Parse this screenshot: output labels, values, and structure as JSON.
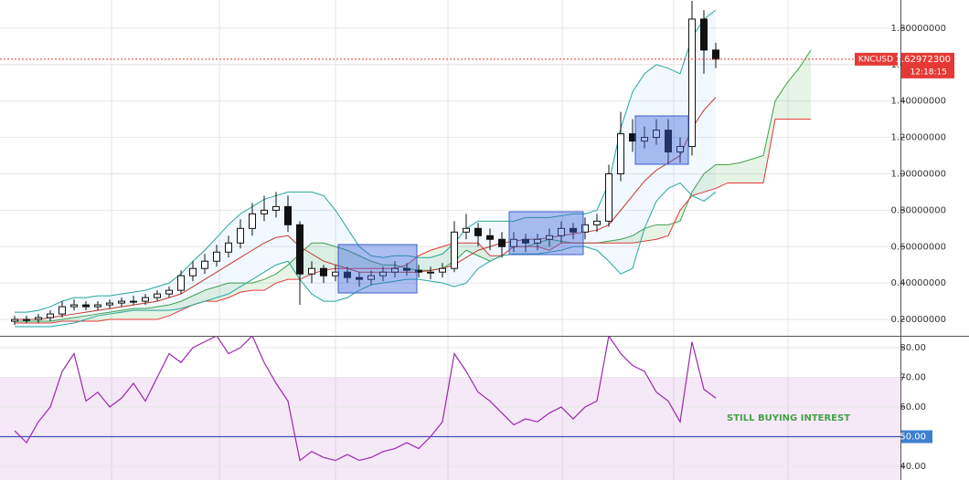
{
  "chart_data": [
    {
      "type": "candlestick",
      "symbol": "KNCUSD",
      "countdown": "12:18:15",
      "last_price": {
        "value": 1.629723,
        "label": "1.62972300"
      },
      "open": [
        0.19,
        0.2,
        0.2,
        0.21,
        0.23,
        0.27,
        0.28,
        0.27,
        0.28,
        0.29,
        0.3,
        0.3,
        0.32,
        0.34,
        0.36,
        0.44,
        0.48,
        0.52,
        0.57,
        0.62,
        0.7,
        0.78,
        0.8,
        0.82,
        0.72,
        0.45,
        0.48,
        0.44,
        0.46,
        0.43,
        0.42,
        0.44,
        0.46,
        0.48,
        0.47,
        0.46,
        0.46,
        0.48,
        0.68,
        0.7,
        0.66,
        0.64,
        0.6,
        0.64,
        0.62,
        0.64,
        0.66,
        0.7,
        0.68,
        0.72,
        0.74,
        1.0,
        1.22,
        1.18,
        1.2,
        1.24,
        1.12,
        1.15,
        1.85,
        1.68
      ],
      "high": [
        0.22,
        0.22,
        0.23,
        0.25,
        0.3,
        0.31,
        0.3,
        0.3,
        0.31,
        0.32,
        0.33,
        0.34,
        0.36,
        0.38,
        0.47,
        0.52,
        0.56,
        0.61,
        0.66,
        0.75,
        0.84,
        0.88,
        0.9,
        0.88,
        0.74,
        0.52,
        0.5,
        0.5,
        0.49,
        0.46,
        0.47,
        0.49,
        0.52,
        0.51,
        0.5,
        0.49,
        0.51,
        0.74,
        0.78,
        0.73,
        0.7,
        0.68,
        0.68,
        0.67,
        0.67,
        0.7,
        0.74,
        0.73,
        0.76,
        0.78,
        1.05,
        1.34,
        1.3,
        1.26,
        1.3,
        1.3,
        1.2,
        1.95,
        1.9,
        1.72
      ],
      "low": [
        0.17,
        0.18,
        0.18,
        0.19,
        0.21,
        0.25,
        0.25,
        0.25,
        0.26,
        0.27,
        0.28,
        0.28,
        0.3,
        0.32,
        0.34,
        0.41,
        0.45,
        0.49,
        0.54,
        0.59,
        0.66,
        0.74,
        0.76,
        0.68,
        0.28,
        0.4,
        0.4,
        0.41,
        0.4,
        0.38,
        0.39,
        0.41,
        0.43,
        0.44,
        0.43,
        0.42,
        0.43,
        0.46,
        0.64,
        0.6,
        0.58,
        0.54,
        0.57,
        0.57,
        0.58,
        0.6,
        0.62,
        0.64,
        0.64,
        0.68,
        0.71,
        0.96,
        1.12,
        1.14,
        1.16,
        1.05,
        1.06,
        1.1,
        1.55,
        1.58
      ],
      "close": [
        0.2,
        0.2,
        0.21,
        0.23,
        0.27,
        0.28,
        0.27,
        0.28,
        0.29,
        0.3,
        0.3,
        0.32,
        0.34,
        0.36,
        0.44,
        0.48,
        0.52,
        0.57,
        0.62,
        0.7,
        0.78,
        0.8,
        0.82,
        0.72,
        0.45,
        0.48,
        0.44,
        0.46,
        0.43,
        0.42,
        0.44,
        0.46,
        0.48,
        0.47,
        0.46,
        0.46,
        0.48,
        0.68,
        0.7,
        0.66,
        0.64,
        0.6,
        0.64,
        0.62,
        0.64,
        0.66,
        0.7,
        0.68,
        0.72,
        0.74,
        1.0,
        1.22,
        1.18,
        1.2,
        1.24,
        1.12,
        1.15,
        1.85,
        1.68,
        1.63
      ],
      "bollinger": {
        "upper": [
          0.24,
          0.24,
          0.25,
          0.27,
          0.3,
          0.32,
          0.32,
          0.33,
          0.33,
          0.34,
          0.35,
          0.36,
          0.38,
          0.4,
          0.45,
          0.52,
          0.58,
          0.65,
          0.72,
          0.78,
          0.82,
          0.86,
          0.88,
          0.9,
          0.9,
          0.9,
          0.88,
          0.8,
          0.7,
          0.6,
          0.55,
          0.54,
          0.55,
          0.55,
          0.54,
          0.54,
          0.56,
          0.62,
          0.7,
          0.74,
          0.74,
          0.74,
          0.74,
          0.76,
          0.76,
          0.76,
          0.77,
          0.78,
          0.78,
          0.8,
          0.95,
          1.25,
          1.45,
          1.55,
          1.6,
          1.58,
          1.55,
          1.75,
          1.85,
          1.9
        ],
        "basis": [
          0.2,
          0.2,
          0.2,
          0.21,
          0.22,
          0.23,
          0.24,
          0.25,
          0.26,
          0.27,
          0.28,
          0.29,
          0.3,
          0.32,
          0.34,
          0.38,
          0.42,
          0.46,
          0.5,
          0.54,
          0.58,
          0.62,
          0.65,
          0.66,
          0.6,
          0.56,
          0.52,
          0.5,
          0.48,
          0.46,
          0.46,
          0.46,
          0.46,
          0.46,
          0.46,
          0.47,
          0.48,
          0.5,
          0.54,
          0.58,
          0.6,
          0.62,
          0.63,
          0.64,
          0.64,
          0.65,
          0.66,
          0.67,
          0.68,
          0.69,
          0.72,
          0.8,
          0.88,
          0.96,
          1.02,
          1.06,
          1.1,
          1.25,
          1.35,
          1.42
        ],
        "lower": [
          0.16,
          0.16,
          0.16,
          0.16,
          0.17,
          0.18,
          0.2,
          0.22,
          0.23,
          0.24,
          0.25,
          0.25,
          0.25,
          0.25,
          0.26,
          0.28,
          0.3,
          0.32,
          0.34,
          0.38,
          0.42,
          0.46,
          0.5,
          0.52,
          0.42,
          0.34,
          0.3,
          0.3,
          0.32,
          0.36,
          0.39,
          0.4,
          0.41,
          0.42,
          0.42,
          0.41,
          0.4,
          0.38,
          0.4,
          0.48,
          0.52,
          0.55,
          0.56,
          0.56,
          0.56,
          0.57,
          0.58,
          0.6,
          0.6,
          0.58,
          0.52,
          0.45,
          0.48,
          0.7,
          0.85,
          0.92,
          0.95,
          0.88,
          0.85,
          0.9
        ]
      },
      "cloud": {
        "span_a": [
          0.19,
          0.19,
          0.19,
          0.19,
          0.2,
          0.21,
          0.22,
          0.23,
          0.24,
          0.25,
          0.26,
          0.26,
          0.27,
          0.28,
          0.3,
          0.33,
          0.36,
          0.38,
          0.4,
          0.4,
          0.4,
          0.42,
          0.45,
          0.5,
          0.56,
          0.62,
          0.62,
          0.6,
          0.58,
          0.55,
          0.52,
          0.5,
          0.5,
          0.48,
          0.47,
          0.47,
          0.48,
          0.52,
          0.58,
          0.55,
          0.52,
          0.55,
          0.6,
          0.6,
          0.62,
          0.64,
          0.63,
          0.62,
          0.62,
          0.62,
          0.63,
          0.64,
          0.66,
          0.7,
          0.72,
          0.72,
          0.74,
          0.9,
          1.0,
          1.05,
          1.05,
          1.06,
          1.08,
          1.1,
          1.4,
          1.5,
          1.58,
          1.68
        ],
        "span_b": [
          0.18,
          0.18,
          0.18,
          0.18,
          0.19,
          0.19,
          0.19,
          0.19,
          0.2,
          0.2,
          0.2,
          0.2,
          0.2,
          0.22,
          0.25,
          0.28,
          0.3,
          0.3,
          0.32,
          0.35,
          0.36,
          0.36,
          0.4,
          0.42,
          0.42,
          0.45,
          0.47,
          0.48,
          0.48,
          0.48,
          0.48,
          0.48,
          0.48,
          0.5,
          0.55,
          0.58,
          0.6,
          0.62,
          0.62,
          0.62,
          0.55,
          0.55,
          0.6,
          0.6,
          0.6,
          0.58,
          0.62,
          0.62,
          0.62,
          0.62,
          0.62,
          0.62,
          0.62,
          0.63,
          0.64,
          0.66,
          0.8,
          0.88,
          0.9,
          0.92,
          0.95,
          0.95,
          0.95,
          0.95,
          1.3,
          1.3,
          1.3,
          1.3
        ]
      },
      "ylim": [
        0.11,
        1.955
      ],
      "grid": true,
      "yticks": [
        {
          "value": 0.2,
          "label": "0.20000000"
        },
        {
          "value": 0.4,
          "label": "0.40000000"
        },
        {
          "value": 0.6,
          "label": "0.60000000"
        },
        {
          "value": 0.8,
          "label": "0.80000000"
        },
        {
          "value": 1.0,
          "label": "1.00000000"
        },
        {
          "value": 1.2,
          "label": "1.20000000"
        },
        {
          "value": 1.4,
          "label": "1.40000000"
        },
        {
          "value": 1.6,
          "label": "1.60000000"
        },
        {
          "value": 1.8,
          "label": "1.80000000"
        }
      ]
    },
    {
      "type": "line",
      "color": "#9c27b0",
      "values": [
        52,
        48,
        55,
        60,
        72,
        78,
        62,
        65,
        60,
        63,
        68,
        62,
        70,
        78,
        75,
        80,
        82,
        84,
        78,
        80,
        84,
        75,
        68,
        62,
        42,
        45,
        43,
        42,
        44,
        42,
        43,
        45,
        46,
        48,
        46,
        50,
        55,
        78,
        72,
        65,
        62,
        58,
        54,
        56,
        55,
        58,
        60,
        56,
        60,
        62,
        84,
        78,
        74,
        72,
        65,
        62,
        55,
        82,
        66,
        63
      ],
      "ylim": [
        35.4,
        84
      ],
      "band": [
        30,
        70
      ],
      "marker": {
        "value": 50,
        "label": "50.00"
      },
      "yticks": [
        {
          "value": 80,
          "label": "80.00"
        },
        {
          "value": 70,
          "label": "70.00"
        },
        {
          "value": 60,
          "label": "60.00"
        },
        {
          "value": 40,
          "label": "40.00"
        }
      ],
      "annotation": "STILL BUYING INTEREST"
    }
  ]
}
